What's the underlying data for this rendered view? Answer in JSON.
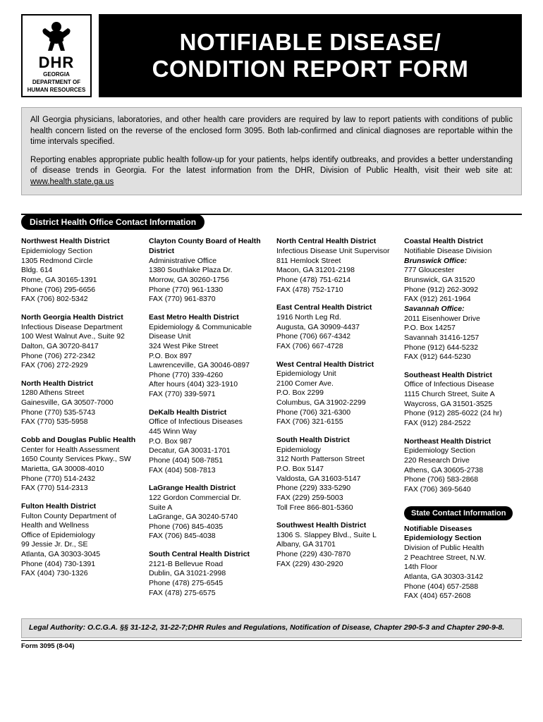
{
  "logo": {
    "abbr": "DHR",
    "line1": "GEORGIA",
    "line2": "DEPARTMENT OF",
    "line3": "HUMAN RESOURCES"
  },
  "title": {
    "l1": "NOTIFIABLE DISEASE/",
    "l2": "CONDITION REPORT FORM"
  },
  "intro": {
    "p1": "All Georgia physicians, laboratories, and other health care providers are required by law to report patients with conditions of public health concern listed on the reverse of the enclosed form 3095.  Both lab-confirmed and clinical diagnoses are reportable within the time intervals specified.",
    "p2": "Reporting enables appropriate public health follow-up for your patients, helps identify outbreaks, and provides a better understanding of disease trends in Georgia.  For the latest information from the DHR, Division of Public Health, visit their web site at: ",
    "url": "www.health.state.ga.us"
  },
  "section1_title": "District Health Office Contact Information",
  "col1": [
    {
      "name": "Northwest Health District",
      "lines": [
        "Epidemiology Section",
        "1305 Redmond Circle",
        "Bldg. 614",
        "Rome, GA 30165-1391",
        "Phone (706) 295-6656",
        "FAX     (706) 802-5342"
      ]
    },
    {
      "name": "North Georgia Health District",
      "lines": [
        "Infectious Disease Department",
        "100 West Walnut Ave., Suite 92",
        "Dalton, GA 30720-8417",
        "Phone (706) 272-2342",
        "FAX     (706) 272-2929"
      ]
    },
    {
      "name": "North Health District",
      "lines": [
        "1280 Athens Street",
        "Gainesville, GA 30507-7000",
        "Phone (770) 535-5743",
        "FAX     (770) 535-5958"
      ]
    },
    {
      "name": "Cobb and Douglas Public Health",
      "lines": [
        "Center for Health Assessment",
        "1650 County Services Pkwy., SW",
        "Marietta, GA 30008-4010",
        "Phone (770) 514-2432",
        "FAX     (770) 514-2313"
      ]
    },
    {
      "name": "Fulton Health District",
      "lines": [
        "Fulton County Department of",
        "Health and Wellness",
        "Office of Epidemiology",
        "99 Jessie  Jr. Dr., SE",
        "Atlanta, GA 30303-3045",
        "Phone (404) 730-1391",
        "FAX     (404) 730-1326"
      ]
    }
  ],
  "col2": [
    {
      "name": "Clayton County Board of Health District",
      "lines": [
        "Administrative Office",
        "1380 Southlake Plaza Dr.",
        "Morrow, GA  30260-1756",
        "Phone (770) 961-1330",
        "FAX     (770) 961-8370"
      ]
    },
    {
      "name": "East Metro Health District",
      "lines": [
        "Epidemiology & Communicable",
        "Disease Unit",
        "324 West Pike Street",
        "P.O. Box 897",
        "Lawrenceville, GA 30046-0897",
        "Phone (770) 339-4260",
        "After hours (404) 323-1910",
        "FAX     (770) 339-5971"
      ]
    },
    {
      "name": "DeKalb Health District",
      "lines": [
        "Office of Infectious Diseases",
        "445 Winn Way",
        "P.O. Box 987",
        "Decatur, GA 30031-1701",
        "Phone (404) 508-7851",
        "FAX     (404) 508-7813"
      ]
    },
    {
      "name": "LaGrange Health District",
      "lines": [
        "122 Gordon Commercial Dr.",
        "Suite A",
        "LaGrange, GA 30240-5740",
        "Phone (706) 845-4035",
        "FAX     (706) 845-4038"
      ]
    },
    {
      "name": "South Central Health District",
      "lines": [
        "2121-B Bellevue Road",
        "Dublin, GA 31021-2998",
        "Phone (478) 275-6545",
        "FAX     (478) 275-6575"
      ]
    }
  ],
  "col3": [
    {
      "name": "North Central Health District",
      "lines": [
        "Infectious Disease Unit Supervisor",
        "811 Hemlock Street",
        "Macon, GA 31201-2198",
        "Phone (478) 751-6214",
        "FAX     (478) 752-1710"
      ]
    },
    {
      "name": "East Central Health District",
      "lines": [
        "1916 North Leg Rd.",
        "Augusta, GA 30909-4437",
        "Phone (706) 667-4342",
        "FAX     (706) 667-4728"
      ]
    },
    {
      "name": "West Central Health District",
      "lines": [
        "Epidemiology Unit",
        "2100 Comer Ave.",
        "P.O. Box 2299",
        "Columbus, GA 31902-2299",
        "Phone (706) 321-6300",
        "FAX     (706) 321-6155"
      ]
    },
    {
      "name": "South Health District",
      "lines": [
        "Epidemiology",
        "312 North Patterson Street",
        "P.O. Box 5147",
        "Valdosta, GA 31603-5147",
        "Phone (229) 333-5290",
        "FAX     (229) 259-5003",
        "Toll Free 866-801-5360"
      ]
    },
    {
      "name": "Southwest Health District",
      "lines": [
        "1306 S. Slappey Blvd., Suite L",
        "Albany, GA 31701",
        "Phone (229) 430-7870",
        "FAX     (229) 430-2920"
      ]
    }
  ],
  "col4": [
    {
      "name": "Coastal Health District",
      "lines": [
        "Notifiable Disease Division"
      ],
      "sub": "Brunswick Office:",
      "sublines": [
        "777 Gloucester",
        "Brunswick, GA 31520",
        "Phone (912) 262-3092",
        "FAX     (912) 261-1964"
      ],
      "sub2": "Savannah Office:",
      "sub2lines": [
        "2011 Eisenhower Drive",
        "P.O. Box 14257",
        "Savannah 31416-1257",
        "Phone (912) 644-5232",
        "FAX     (912) 644-5230"
      ]
    },
    {
      "name": "Southeast Health District",
      "lines": [
        "Office of Infectious Disease",
        "1115 Church Street, Suite A",
        "Waycross, GA 31501-3525",
        "Phone (912) 285-6022 (24 hr)",
        "FAX     (912) 284-2522"
      ]
    },
    {
      "name": "Northeast Health District",
      "lines": [
        "Epidemiology Section",
        "220 Research Drive",
        "Athens, GA 30605-2738",
        "Phone (706) 583-2868",
        "FAX     (706) 369-5640"
      ]
    }
  ],
  "state_title": "State Contact Information",
  "state": {
    "name": "Notifiable Diseases Epidemiology Section",
    "lines": [
      "Division of Public Health",
      "2 Peachtree Street, N.W.",
      "14th Floor",
      "Atlanta, GA 30303-3142",
      "Phone (404) 657-2588",
      "FAX     (404) 657-2608"
    ]
  },
  "legal": "Legal Authority: O.C.G.A. §§ 31-12-2, 31-22-7;DHR Rules and Regulations, Notification of Disease, Chapter 290-5-3 and Chapter 290-9-8.",
  "form_id": "Form 3095 (8-04)"
}
